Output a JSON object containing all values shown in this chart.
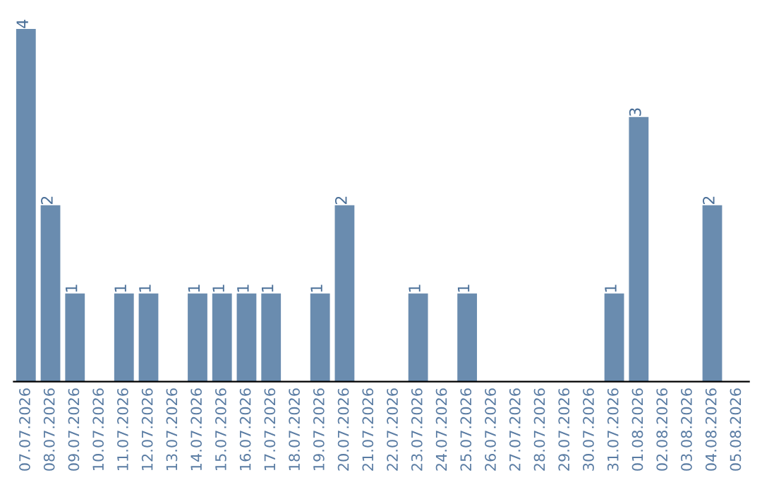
{
  "chart_data": {
    "type": "bar",
    "categories": [
      "07.07.2026",
      "08.07.2026",
      "09.07.2026",
      "10.07.2026",
      "11.07.2026",
      "12.07.2026",
      "13.07.2026",
      "14.07.2026",
      "15.07.2026",
      "16.07.2026",
      "17.07.2026",
      "18.07.2026",
      "19.07.2026",
      "20.07.2026",
      "21.07.2026",
      "22.07.2026",
      "23.07.2026",
      "24.07.2026",
      "25.07.2026",
      "26.07.2026",
      "27.07.2026",
      "28.07.2026",
      "29.07.2026",
      "30.07.2026",
      "31.07.2026",
      "01.08.2026",
      "02.08.2026",
      "03.08.2026",
      "04.08.2026",
      "05.08.2026"
    ],
    "values": [
      4,
      2,
      1,
      0,
      1,
      1,
      0,
      1,
      1,
      1,
      1,
      0,
      1,
      2,
      0,
      0,
      1,
      0,
      1,
      0,
      0,
      0,
      0,
      0,
      1,
      3,
      0,
      0,
      2,
      0
    ],
    "color": "#6a8caf",
    "value_labels": [
      "4",
      "2",
      "1",
      null,
      "1",
      "1",
      null,
      "1",
      "1",
      "1",
      "1",
      null,
      "1",
      "2",
      null,
      null,
      "1",
      null,
      "1",
      null,
      null,
      null,
      null,
      null,
      "1",
      "3",
      null,
      null,
      "2",
      null
    ],
    "grid": false,
    "legend": false
  }
}
